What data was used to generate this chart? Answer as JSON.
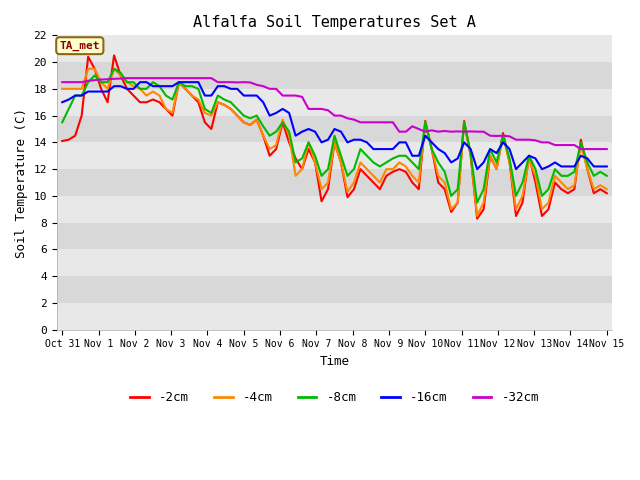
{
  "title": "Alfalfa Soil Temperatures Set A",
  "xlabel": "Time",
  "ylabel": "Soil Temperature (C)",
  "ylim": [
    0,
    22
  ],
  "yticks": [
    0,
    2,
    4,
    6,
    8,
    10,
    12,
    14,
    16,
    18,
    20,
    22
  ],
  "figure_bg": "#ffffff",
  "plot_bg": "#ffffff",
  "band_colors": [
    "#e8e8e8",
    "#d8d8d8"
  ],
  "annotation_text": "TA_met",
  "annotation_bg": "#ffffcc",
  "annotation_border": "#8b6914",
  "annotation_text_color": "#8b0000",
  "series": {
    "neg2cm": {
      "label": "-2cm",
      "color": "#ff0000"
    },
    "neg4cm": {
      "label": "-4cm",
      "color": "#ff8800"
    },
    "neg8cm": {
      "label": "-8cm",
      "color": "#00bb00"
    },
    "neg16cm": {
      "label": "-16cm",
      "color": "#0000ff"
    },
    "neg32cm": {
      "label": "-32cm",
      "color": "#cc00cc"
    }
  },
  "x_ticks_labels": [
    "Oct 31",
    "Nov 1",
    "Nov 2",
    "Nov 3",
    "Nov 4",
    "Nov 5",
    "Nov 6",
    "Nov 7",
    "Nov 8",
    "Nov 9",
    "Nov 10",
    "Nov 11",
    "Nov 12",
    "Nov 13",
    "Nov 14",
    "Nov 15"
  ],
  "neg2cm_y": [
    14.1,
    14.2,
    14.5,
    16.0,
    20.4,
    19.5,
    18.0,
    17.0,
    20.5,
    19.0,
    18.0,
    17.5,
    17.0,
    17.0,
    17.2,
    17.0,
    16.5,
    16.0,
    18.5,
    18.0,
    17.5,
    17.0,
    15.5,
    15.0,
    17.0,
    16.8,
    16.5,
    16.0,
    15.5,
    15.3,
    15.7,
    14.5,
    13.0,
    13.5,
    15.5,
    14.0,
    12.8,
    12.0,
    13.5,
    12.5,
    9.6,
    10.5,
    14.0,
    12.5,
    9.9,
    10.5,
    12.0,
    11.5,
    11.0,
    10.5,
    11.5,
    11.8,
    12.0,
    11.8,
    11.0,
    10.5,
    15.6,
    13.5,
    11.0,
    10.5,
    8.8,
    9.5,
    15.6,
    13.0,
    8.3,
    9.0,
    13.0,
    12.0,
    14.7,
    12.5,
    8.5,
    9.5,
    13.0,
    11.0,
    8.5,
    9.0,
    11.0,
    10.5,
    10.2,
    10.5,
    14.2,
    12.0,
    10.2,
    10.5,
    10.2
  ],
  "neg4cm_y": [
    18.0,
    18.0,
    18.0,
    18.0,
    19.5,
    19.5,
    18.5,
    18.0,
    19.5,
    19.0,
    18.5,
    18.2,
    18.0,
    17.5,
    17.8,
    17.5,
    16.5,
    16.2,
    18.5,
    18.0,
    17.5,
    17.2,
    16.2,
    16.0,
    17.0,
    16.8,
    16.5,
    16.0,
    15.5,
    15.3,
    15.7,
    14.5,
    13.5,
    13.8,
    15.7,
    14.5,
    11.5,
    12.0,
    14.0,
    12.5,
    10.5,
    11.0,
    14.0,
    12.5,
    10.3,
    11.0,
    12.5,
    12.0,
    11.5,
    11.0,
    12.0,
    12.0,
    12.5,
    12.2,
    11.5,
    11.0,
    15.5,
    13.5,
    11.5,
    11.0,
    9.0,
    9.5,
    15.5,
    13.0,
    8.5,
    9.5,
    13.0,
    12.0,
    14.5,
    12.5,
    9.0,
    10.0,
    12.7,
    11.5,
    9.0,
    9.5,
    11.5,
    11.0,
    10.5,
    10.8,
    13.8,
    12.0,
    10.5,
    10.8,
    10.5
  ],
  "neg8cm_y": [
    15.5,
    16.5,
    17.5,
    17.5,
    18.5,
    19.0,
    18.5,
    18.5,
    19.5,
    19.2,
    18.5,
    18.5,
    18.0,
    18.0,
    18.5,
    18.2,
    17.5,
    17.2,
    18.5,
    18.2,
    18.2,
    18.0,
    16.5,
    16.2,
    17.5,
    17.2,
    17.0,
    16.5,
    16.0,
    15.8,
    16.0,
    15.2,
    14.5,
    14.8,
    15.5,
    14.8,
    12.5,
    12.8,
    14.0,
    13.0,
    11.5,
    12.0,
    14.5,
    13.0,
    11.5,
    12.0,
    13.5,
    13.0,
    12.5,
    12.2,
    12.5,
    12.8,
    13.0,
    13.0,
    12.5,
    12.0,
    15.5,
    13.5,
    12.5,
    11.8,
    10.0,
    10.5,
    15.5,
    13.2,
    9.5,
    10.5,
    13.5,
    12.5,
    14.5,
    12.8,
    10.0,
    11.0,
    13.0,
    12.0,
    10.0,
    10.5,
    12.0,
    11.5,
    11.5,
    11.8,
    14.0,
    12.5,
    11.5,
    11.8,
    11.5
  ],
  "neg16cm_y": [
    17.0,
    17.2,
    17.5,
    17.5,
    17.8,
    17.8,
    17.8,
    17.8,
    18.2,
    18.2,
    18.0,
    18.0,
    18.5,
    18.5,
    18.2,
    18.2,
    18.2,
    18.2,
    18.5,
    18.5,
    18.5,
    18.5,
    17.5,
    17.5,
    18.2,
    18.2,
    18.0,
    18.0,
    17.5,
    17.5,
    17.5,
    17.0,
    16.0,
    16.2,
    16.5,
    16.2,
    14.5,
    14.8,
    15.0,
    14.8,
    14.0,
    14.2,
    15.0,
    14.8,
    14.0,
    14.2,
    14.2,
    14.0,
    13.5,
    13.5,
    13.5,
    13.5,
    14.0,
    14.0,
    13.0,
    13.0,
    14.5,
    14.0,
    13.5,
    13.2,
    12.5,
    12.8,
    14.0,
    13.5,
    12.0,
    12.5,
    13.5,
    13.2,
    14.0,
    13.5,
    12.0,
    12.5,
    13.0,
    12.8,
    12.0,
    12.2,
    12.5,
    12.2,
    12.2,
    12.2,
    13.0,
    12.8,
    12.2,
    12.2,
    12.2
  ],
  "neg32cm_y": [
    18.5,
    18.5,
    18.5,
    18.5,
    18.6,
    18.65,
    18.7,
    18.72,
    18.75,
    18.77,
    18.8,
    18.8,
    18.8,
    18.8,
    18.8,
    18.8,
    18.8,
    18.8,
    18.8,
    18.8,
    18.8,
    18.8,
    18.8,
    18.8,
    18.5,
    18.5,
    18.5,
    18.48,
    18.5,
    18.48,
    18.3,
    18.2,
    18.0,
    18.0,
    17.5,
    17.5,
    17.5,
    17.4,
    16.5,
    16.5,
    16.5,
    16.4,
    16.0,
    16.0,
    15.8,
    15.7,
    15.5,
    15.5,
    15.5,
    15.5,
    15.5,
    15.5,
    14.8,
    14.8,
    15.2,
    15.0,
    14.8,
    14.9,
    14.8,
    14.85,
    14.8,
    14.82,
    14.8,
    14.82,
    14.8,
    14.8,
    14.5,
    14.48,
    14.5,
    14.45,
    14.2,
    14.2,
    14.2,
    14.15,
    14.0,
    14.0,
    13.8,
    13.8,
    13.8,
    13.8,
    13.5,
    13.5,
    13.5,
    13.5,
    13.5
  ]
}
